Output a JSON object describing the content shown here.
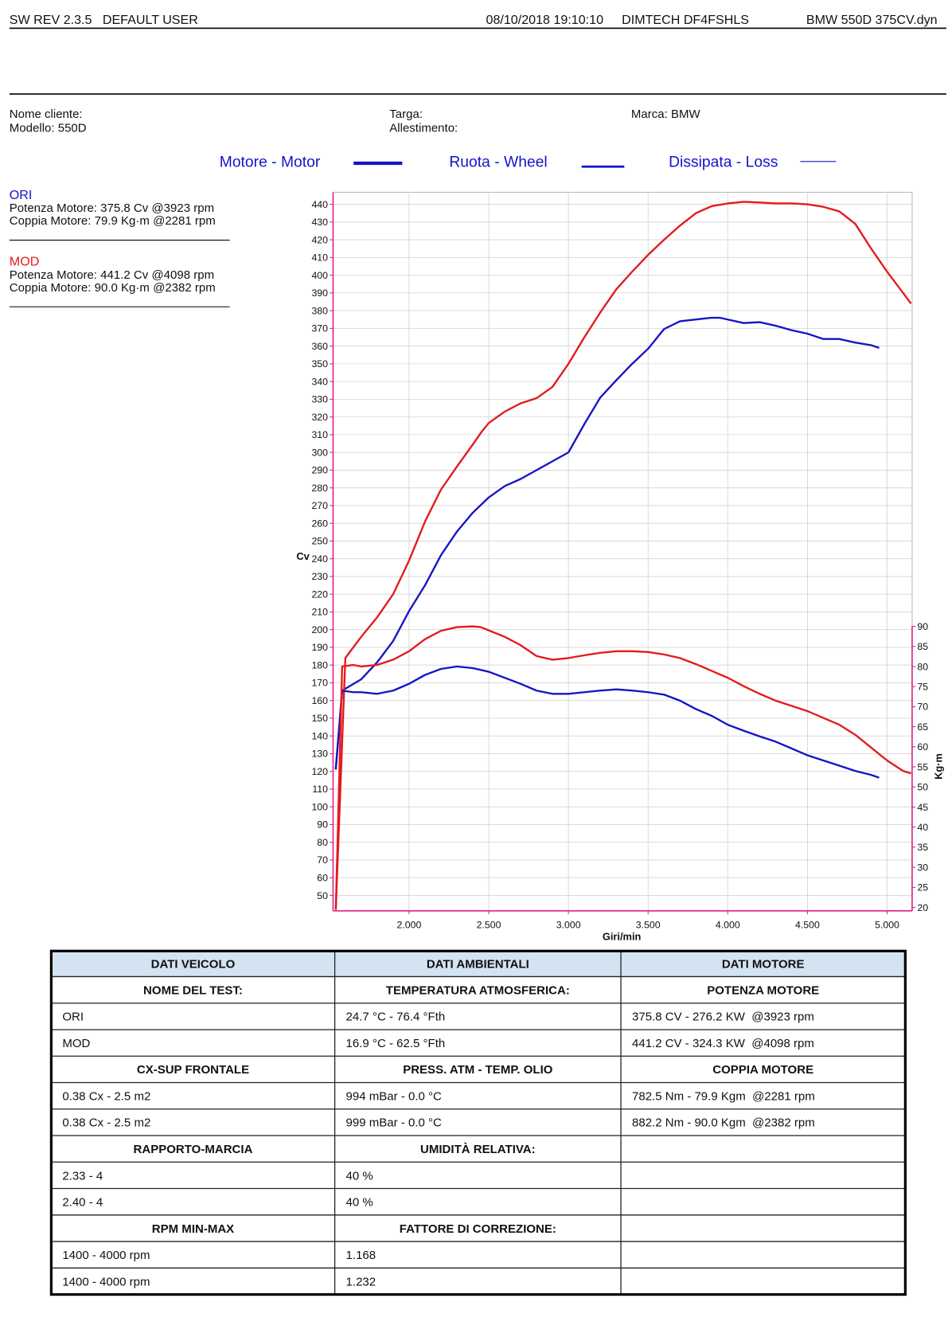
{
  "header": {
    "software": "SW REV 2.3.5   DEFAULT USER",
    "datetime": "08/10/2018 19:10:10",
    "device": "DIMTECH DF4FSHLS",
    "file": "BMW 550D 375CV.dyn"
  },
  "info": {
    "client": "Nome cliente:",
    "model": "Modello: 550D",
    "plate": "Targa:",
    "trim": "Allestimento:",
    "brand": "Marca: BMW"
  },
  "summary": [
    {
      "name": "ORI",
      "power": "Potenza Motore: 375.8 Cv @3923 rpm",
      "torque": "Coppia Motore: 79.9 Kg·m @2281 rpm"
    },
    {
      "name": "MOD",
      "power": "Potenza Motore: 441.2 Cv @4098 rpm",
      "torque": "Coppia Motore: 90.0 Kg·m @2382 rpm"
    }
  ],
  "chart_data": {
    "type": "line",
    "legend": [
      "Motore - Motor",
      "Ruota - Wheel",
      "Dissipata - Loss"
    ],
    "x_label": "Giri/min",
    "y_label": "Cv",
    "y2_label": "Kg·m",
    "xlim": [
      1523,
      5157
    ],
    "ylim": [
      41.3,
      446.8
    ],
    "y2lim": [
      19.15,
      198.1
    ],
    "grid": true,
    "xticks": [
      {
        "value": 2000,
        "label": "2.000"
      },
      {
        "value": 2500,
        "label": "2.500"
      },
      {
        "value": 3000,
        "label": "3.000"
      },
      {
        "value": 3500,
        "label": "3.500"
      },
      {
        "value": 4000,
        "label": "4.000"
      },
      {
        "value": 4500,
        "label": "4.500"
      },
      {
        "value": 5000,
        "label": "5.000"
      }
    ],
    "yticks": [
      50,
      60,
      70,
      80,
      90,
      100,
      110,
      120,
      130,
      140,
      150,
      160,
      170,
      180,
      190,
      200,
      210,
      220,
      230,
      240,
      250,
      260,
      270,
      280,
      290,
      300,
      310,
      320,
      330,
      340,
      350,
      360,
      370,
      380,
      390,
      400,
      410,
      420,
      430,
      440
    ],
    "y2ticks": [
      20,
      25,
      30,
      35,
      40,
      45,
      50,
      55,
      60,
      65,
      70,
      75,
      80,
      85,
      90
    ],
    "series": [
      {
        "color": "#1414c8",
        "x": [
          1540,
          1580,
          1700,
          1800,
          1900,
          2000,
          2100,
          2200,
          2300,
          2400,
          2500,
          2600,
          2700,
          2800,
          2900,
          3000,
          3100,
          3200,
          3300,
          3400,
          3500,
          3600,
          3700,
          3800,
          3900,
          3950,
          4000,
          4100,
          4200,
          4300,
          4400,
          4500,
          4600,
          4700,
          4800,
          4900,
          4950
        ],
        "values": [
          121,
          165.6,
          172,
          181.6,
          193.6,
          210.5,
          225,
          242,
          255.3,
          266,
          274.6,
          281,
          285,
          290,
          295,
          300,
          316,
          331,
          340.7,
          350,
          358.5,
          369.6,
          374,
          375,
          376,
          376,
          375,
          373,
          373.5,
          371.5,
          369,
          367,
          364,
          364,
          362,
          360.5,
          359
        ]
      },
      {
        "color": "#e41a1a",
        "x": [
          1540,
          1600,
          1700,
          1800,
          1900,
          2000,
          2100,
          2200,
          2300,
          2400,
          2450,
          2500,
          2600,
          2700,
          2800,
          2900,
          3000,
          3100,
          3200,
          3300,
          3400,
          3500,
          3600,
          3700,
          3800,
          3900,
          4000,
          4100,
          4200,
          4300,
          4400,
          4500,
          4600,
          4700,
          4800,
          4900,
          5000,
          5100,
          5150
        ],
        "values": [
          42,
          184,
          196,
          207,
          220,
          239,
          261,
          279,
          292,
          304.5,
          311,
          316.6,
          323,
          327.7,
          330.6,
          337,
          350,
          365,
          379,
          392,
          402,
          411.5,
          420,
          428,
          435,
          439,
          440.5,
          441.4,
          441,
          440.5,
          440.5,
          440,
          438.6,
          436,
          429,
          415,
          402,
          390,
          384
        ]
      },
      {
        "color": "#1414c8",
        "axis": "y2",
        "x": [
          1540,
          1580,
          1650,
          1700,
          1800,
          1900,
          2000,
          2100,
          2200,
          2300,
          2400,
          2500,
          2600,
          2700,
          2800,
          2900,
          3000,
          3100,
          3200,
          3300,
          3400,
          3500,
          3600,
          3700,
          3800,
          3900,
          4000,
          4100,
          4200,
          4300,
          4400,
          4500,
          4600,
          4700,
          4800,
          4900,
          4950
        ],
        "values": [
          54.5,
          74,
          73.6,
          73.6,
          73.2,
          74,
          75.7,
          77.9,
          79.4,
          80,
          79.6,
          78.7,
          77.2,
          75.7,
          74,
          73.2,
          73.2,
          73.6,
          74,
          74.3,
          74,
          73.6,
          73,
          71.5,
          69.4,
          67.7,
          65.5,
          64,
          62.6,
          61.3,
          59.6,
          57.9,
          56.6,
          55.3,
          54,
          53,
          52.3
        ]
      },
      {
        "color": "#e41a1a",
        "axis": "y2",
        "x": [
          1540,
          1580,
          1650,
          1700,
          1800,
          1900,
          2000,
          2100,
          2200,
          2300,
          2400,
          2450,
          2500,
          2600,
          2700,
          2800,
          2900,
          3000,
          3100,
          3200,
          3300,
          3400,
          3500,
          3600,
          3700,
          3800,
          3900,
          4000,
          4100,
          4200,
          4300,
          4400,
          4500,
          4600,
          4700,
          4800,
          4900,
          5000,
          5100,
          5150
        ],
        "values": [
          19.4,
          80,
          80.4,
          80,
          80.4,
          81.7,
          83.8,
          86.8,
          88.9,
          89.8,
          90,
          89.8,
          89,
          87.4,
          85.3,
          82.6,
          81.7,
          82.1,
          82.8,
          83.4,
          83.8,
          83.8,
          83.6,
          83,
          82.1,
          80.6,
          78.9,
          77.2,
          75.1,
          73.2,
          71.5,
          70.2,
          68.9,
          67.2,
          65.5,
          63,
          59.8,
          56.6,
          54,
          53.4
        ]
      }
    ]
  },
  "table": {
    "rows": [
      [
        "DATI VEICOLO",
        "DATI AMBIENTALI",
        "DATI MOTORE"
      ],
      [
        "NOME DEL TEST:",
        "TEMPERATURA ATMOSFERICA:",
        "POTENZA MOTORE"
      ],
      [
        "ORI",
        "24.7 °C - 76.4 °Fth",
        "375.8 CV - 276.2 KW  @3923 rpm"
      ],
      [
        "MOD",
        "16.9 °C - 62.5 °Fth",
        "441.2 CV - 324.3 KW  @4098 rpm"
      ],
      [
        "CX-SUP FRONTALE",
        "PRESS. ATM - TEMP. OLIO",
        "COPPIA MOTORE"
      ],
      [
        "0.38 Cx - 2.5 m2",
        "994 mBar - 0.0 °C",
        "782.5 Nm - 79.9 Kgm  @2281 rpm"
      ],
      [
        "0.38 Cx - 2.5 m2",
        "999 mBar - 0.0 °C",
        "882.2 Nm - 90.0 Kgm  @2382 rpm"
      ],
      [
        "RAPPORTO-MARCIA",
        "UMIDITÀ RELATIVA:",
        null
      ],
      [
        "2.33 - 4",
        "40 %",
        null
      ],
      [
        "2.40 - 4",
        "40 %",
        null
      ],
      [
        "RPM MIN-MAX",
        "FATTORE DI CORREZIONE:",
        null
      ],
      [
        "1400 - 4000 rpm",
        "1.168",
        null
      ],
      [
        "1400 - 4000 rpm",
        "1.232",
        null
      ]
    ]
  }
}
